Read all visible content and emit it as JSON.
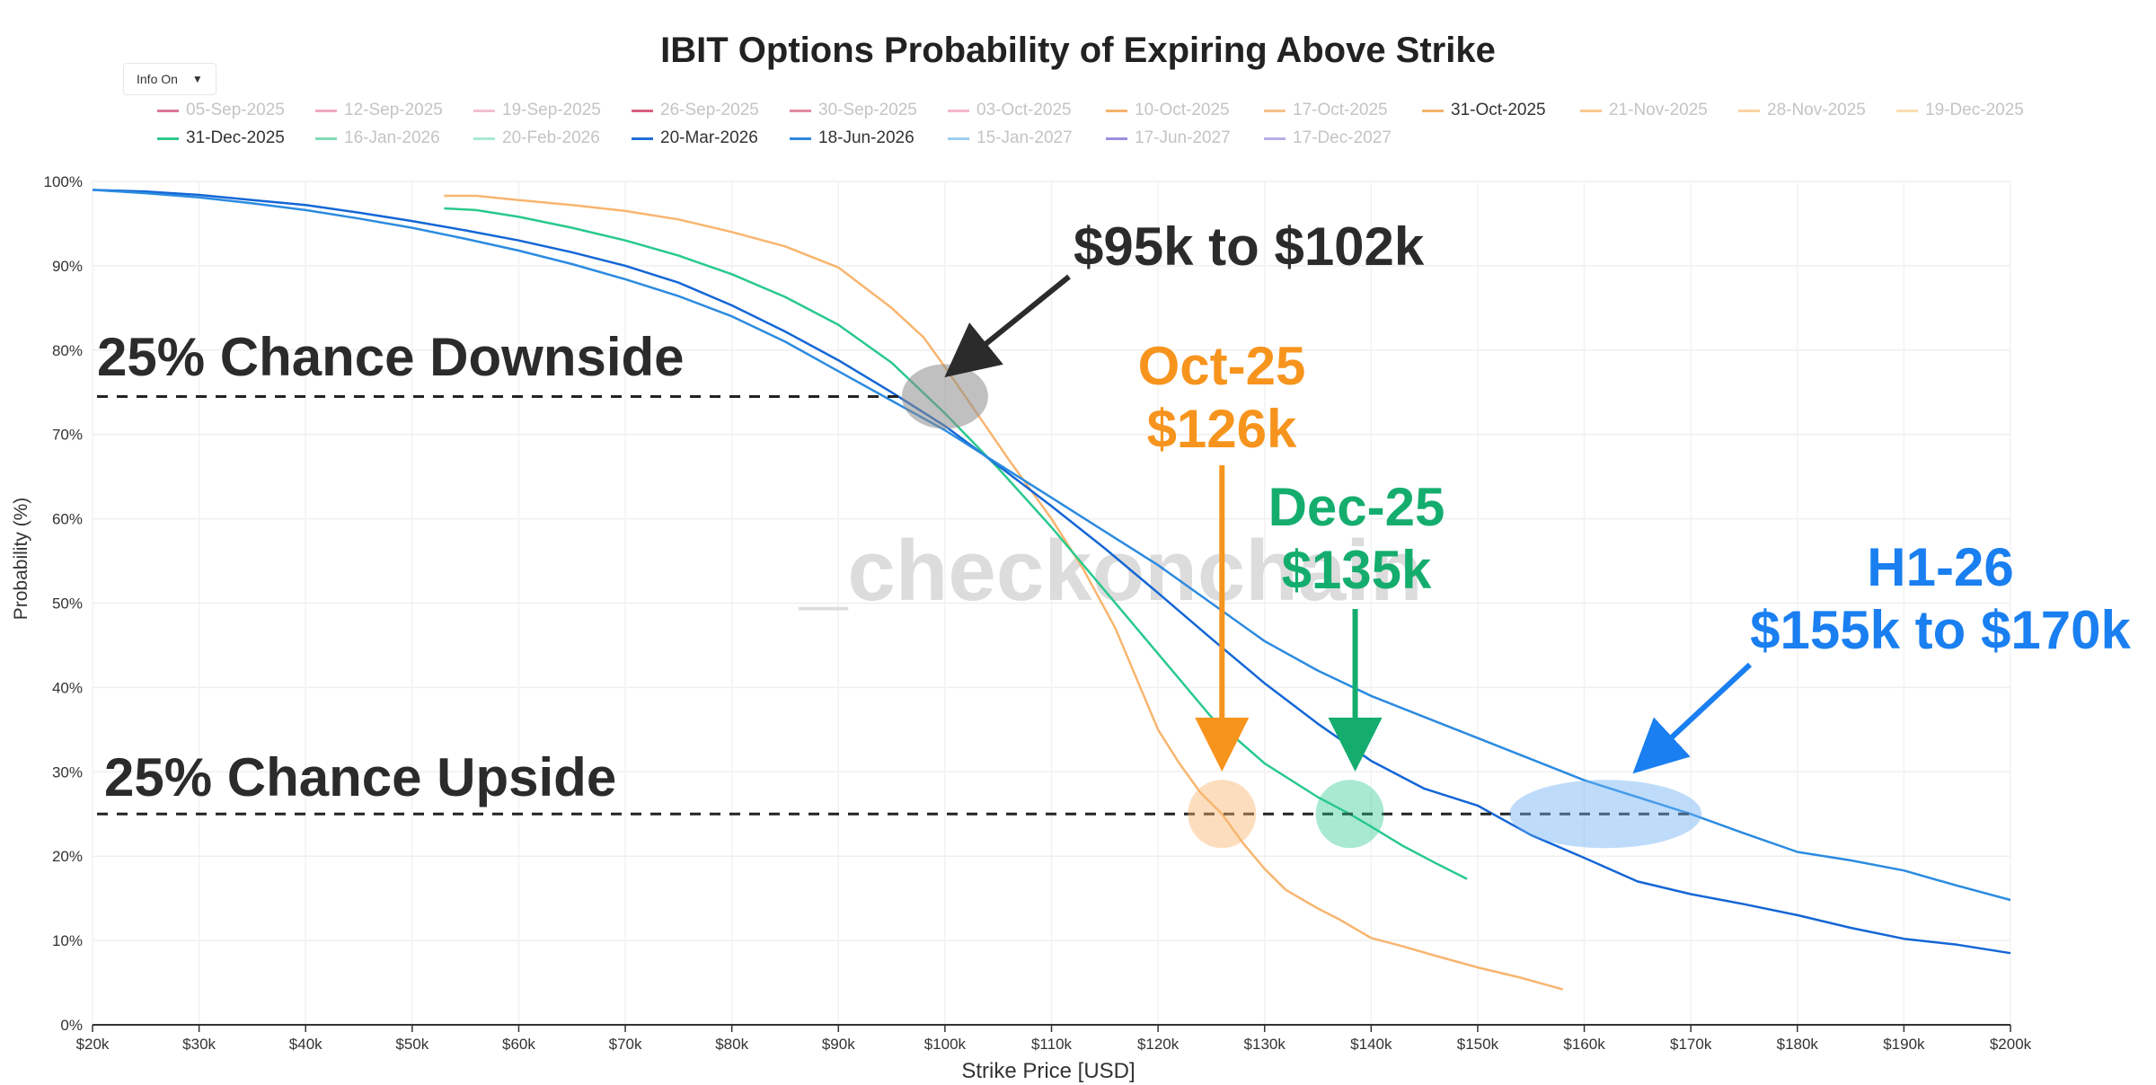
{
  "menu": {
    "info_label": "Info On",
    "caret": "▼"
  },
  "legend": [
    {
      "label": "05-Sep-2025",
      "color": "#d9789a",
      "active": false
    },
    {
      "label": "12-Sep-2025",
      "color": "#f0a8c0",
      "active": false
    },
    {
      "label": "19-Sep-2025",
      "color": "#f2c0cf",
      "active": false
    },
    {
      "label": "26-Sep-2025",
      "color": "#d96080",
      "active": false
    },
    {
      "label": "30-Sep-2025",
      "color": "#e48aa0",
      "active": false
    },
    {
      "label": "03-Oct-2025",
      "color": "#f5b8c8",
      "active": false
    },
    {
      "label": "10-Oct-2025",
      "color": "#f5b26b",
      "active": false
    },
    {
      "label": "17-Oct-2025",
      "color": "#f7c08a",
      "active": false
    },
    {
      "label": "31-Oct-2025",
      "color": "#f5b26b",
      "active": true
    },
    {
      "label": "21-Nov-2025",
      "color": "#f8c88f",
      "active": false
    },
    {
      "label": "28-Nov-2025",
      "color": "#f9d39f",
      "active": false
    },
    {
      "label": "19-Dec-2025",
      "color": "#fbddb2",
      "active": false
    },
    {
      "label": "31-Dec-2025",
      "color": "#2ec98a",
      "active": true
    },
    {
      "label": "16-Jan-2026",
      "color": "#7fdcb2",
      "active": false
    },
    {
      "label": "20-Feb-2026",
      "color": "#a8ead0",
      "active": false
    },
    {
      "label": "20-Mar-2026",
      "color": "#1e6fd9",
      "active": true
    },
    {
      "label": "18-Jun-2026",
      "color": "#2b88e0",
      "active": true
    },
    {
      "label": "15-Jan-2027",
      "color": "#9ccff0",
      "active": false
    },
    {
      "label": "17-Jun-2027",
      "color": "#9a8fe0",
      "active": false
    },
    {
      "label": "17-Dec-2027",
      "color": "#b4aee8",
      "active": false
    }
  ],
  "watermark": "_checkonchain",
  "annotations": {
    "downside": "25% Chance Downside",
    "upside": "25% Chance Upside",
    "range_label": "$95k to $102k",
    "oct_line1": "Oct-25",
    "oct_line2": "$126k",
    "dec_line1": "Dec-25",
    "dec_line2": "$135k",
    "h1_line1": "H1-26",
    "h1_line2": "$155k to $170k"
  },
  "colors": {
    "oct": "#f7941d",
    "dec": "#14ad6e",
    "h1": "#1a7ff0",
    "dark": "#2b2b2b",
    "line_oct": "#f8b56f",
    "line_dec": "#29c98d",
    "line_mar": "#1466d6",
    "line_jun": "#2b8be0"
  },
  "chart_data": {
    "type": "line",
    "title": "IBIT Options Probability of Expiring Above Strike",
    "xlabel": "Strike Price [USD]",
    "ylabel": "Probability (%)",
    "xlim": [
      20,
      200
    ],
    "ylim": [
      0,
      100
    ],
    "x_unit": "k USD",
    "x_ticks": [
      "$20k",
      "$30k",
      "$40k",
      "$50k",
      "$60k",
      "$70k",
      "$80k",
      "$90k",
      "$100k",
      "$110k",
      "$120k",
      "$130k",
      "$140k",
      "$150k",
      "$160k",
      "$170k",
      "$180k",
      "$190k",
      "$200k"
    ],
    "y_ticks": [
      "0%",
      "10%",
      "20%",
      "30%",
      "40%",
      "50%",
      "60%",
      "70%",
      "80%",
      "90%",
      "100%"
    ],
    "reference_lines": [
      74.5,
      25
    ],
    "series": [
      {
        "name": "31-Oct-2025",
        "x": [
          53,
          56,
          60,
          65,
          70,
          75,
          80,
          85,
          90,
          95,
          98,
          100,
          103,
          106,
          110,
          113,
          116,
          118,
          120,
          122,
          124,
          126,
          128,
          130,
          132,
          135,
          137,
          140,
          143,
          146,
          150,
          154,
          158
        ],
        "y": [
          98.3,
          98.3,
          97.8,
          97.2,
          96.5,
          95.5,
          94,
          92.3,
          89.8,
          85,
          81.5,
          78,
          72.5,
          67,
          60,
          54,
          47,
          41,
          35,
          31,
          27.5,
          25,
          21.5,
          18.5,
          16,
          13.8,
          12.5,
          10.3,
          9.3,
          8.2,
          6.8,
          5.6,
          4.2
        ]
      },
      {
        "name": "31-Dec-2025",
        "x": [
          53,
          56,
          60,
          65,
          70,
          75,
          80,
          85,
          90,
          95,
          100,
          105,
          110,
          115,
          120,
          125,
          130,
          135,
          138,
          140,
          143,
          146,
          149
        ],
        "y": [
          96.8,
          96.6,
          95.8,
          94.5,
          93,
          91.2,
          89,
          86.3,
          83,
          78.5,
          72.5,
          66,
          59,
          51.5,
          44,
          36.5,
          31,
          27,
          25,
          23.5,
          21.2,
          19.2,
          17.3
        ]
      },
      {
        "name": "20-Mar-2026",
        "x": [
          20,
          25,
          30,
          35,
          40,
          45,
          50,
          55,
          60,
          65,
          70,
          75,
          80,
          85,
          90,
          95,
          100,
          105,
          110,
          115,
          120,
          125,
          130,
          135,
          140,
          145,
          150,
          155,
          160,
          165,
          170,
          175,
          180,
          185,
          190,
          195,
          200
        ],
        "y": [
          99,
          98.8,
          98.4,
          97.8,
          97.2,
          96.3,
          95.3,
          94.2,
          93,
          91.6,
          90,
          88,
          85.3,
          82.2,
          78.8,
          75,
          71,
          66.3,
          61.5,
          56.5,
          51.2,
          45.8,
          40.5,
          35.7,
          31.3,
          28,
          26,
          22.5,
          19.8,
          17,
          15.5,
          14.3,
          13,
          11.5,
          10.2,
          9.5,
          8.5
        ]
      },
      {
        "name": "18-Jun-2026",
        "x": [
          20,
          25,
          30,
          35,
          40,
          45,
          50,
          55,
          60,
          65,
          70,
          75,
          80,
          85,
          90,
          95,
          100,
          105,
          110,
          115,
          120,
          125,
          130,
          135,
          140,
          145,
          150,
          155,
          160,
          165,
          170,
          175,
          180,
          185,
          190,
          195,
          200
        ],
        "y": [
          99,
          98.6,
          98.1,
          97.4,
          96.6,
          95.6,
          94.5,
          93.2,
          91.8,
          90.2,
          88.4,
          86.4,
          84,
          81,
          77.5,
          74,
          70.5,
          66.5,
          62.5,
          58.5,
          54.5,
          50,
          45.5,
          42,
          39,
          36.5,
          34,
          31.5,
          29,
          27,
          25,
          22.7,
          20.5,
          19.5,
          18.3,
          16.5,
          14.8
        ]
      }
    ]
  }
}
